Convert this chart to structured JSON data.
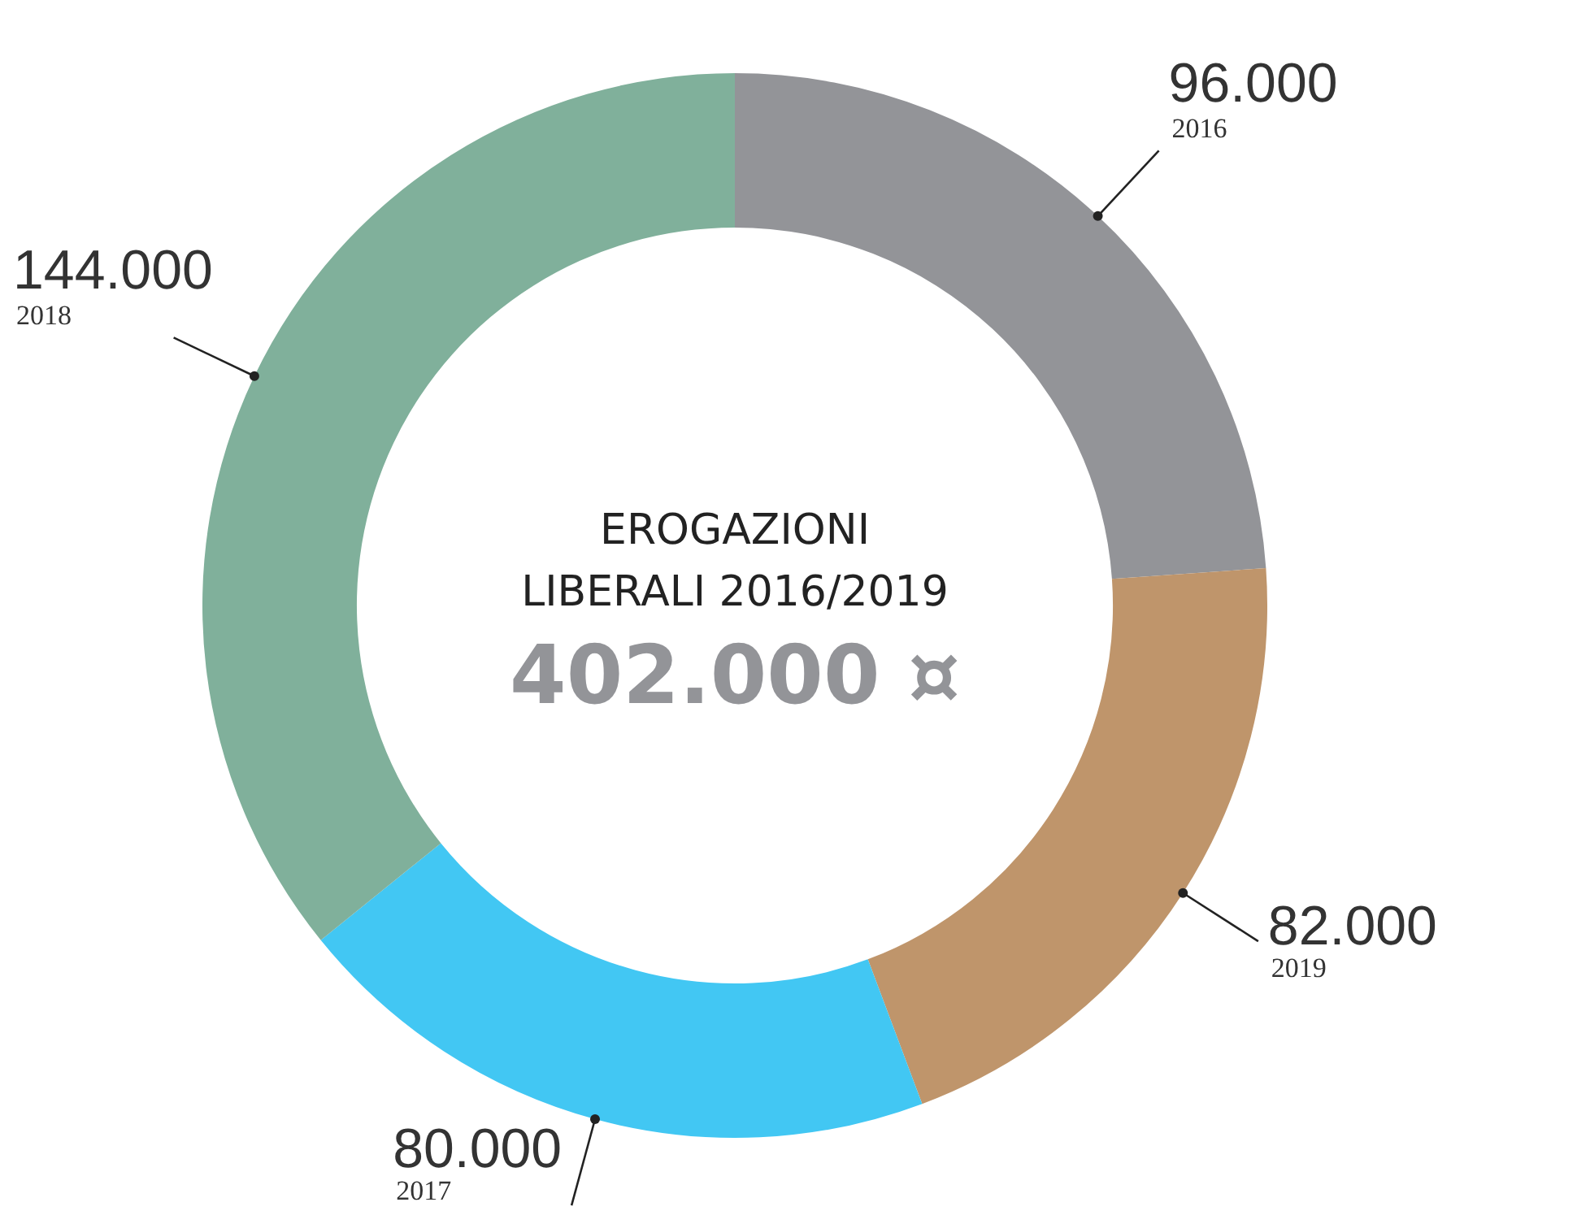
{
  "chart_data": {
    "type": "donut",
    "title": "EROGAZIONI\nLIBERALI 2016/2019",
    "subtitle": "402.000 ¤",
    "categories": [
      "2016",
      "2019",
      "2017",
      "2018"
    ],
    "values": [
      96000,
      82000,
      80000,
      144000
    ],
    "colors": [
      "#939498",
      "#bf956b",
      "#42c7f3",
      "#80b09b"
    ],
    "value_labels": [
      "96.000",
      "82.000",
      "80.000",
      "144.000"
    ],
    "legend": false
  }
}
